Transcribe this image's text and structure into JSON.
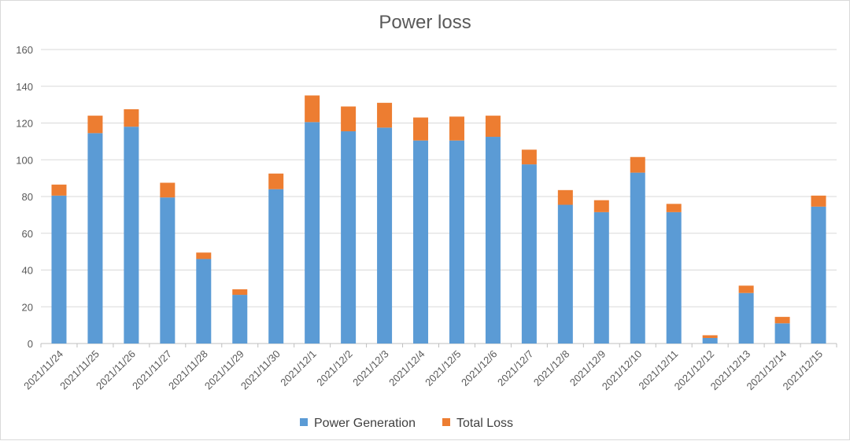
{
  "chart_data": {
    "type": "bar",
    "stacked": true,
    "title": "Power loss",
    "xlabel": "",
    "ylabel": "",
    "ylim": [
      0,
      160
    ],
    "yticks": [
      0,
      20,
      40,
      60,
      80,
      100,
      120,
      140,
      160
    ],
    "grid": true,
    "legend_position": "bottom",
    "categories": [
      "2021/11/24",
      "2021/11/25",
      "2021/11/26",
      "2021/11/27",
      "2021/11/28",
      "2021/11/29",
      "2021/11/30",
      "2021/12/1",
      "2021/12/2",
      "2021/12/3",
      "2021/12/4",
      "2021/12/5",
      "2021/12/6",
      "2021/12/7",
      "2021/12/8",
      "2021/12/9",
      "2021/12/10",
      "2021/12/11",
      "2021/12/12",
      "2021/12/13",
      "2021/12/14",
      "2021/12/15"
    ],
    "series": [
      {
        "name": "Power Generation",
        "color": "#5b9bd5",
        "values": [
          80.5,
          114.5,
          118,
          79.5,
          46,
          26.5,
          84,
          120.5,
          115.5,
          117.5,
          110.5,
          110.5,
          112.5,
          97.5,
          75.5,
          71.5,
          93,
          71.5,
          3,
          27.5,
          11,
          74.5
        ]
      },
      {
        "name": "Total Loss",
        "color": "#ed7d31",
        "values": [
          6,
          9.5,
          9.5,
          8,
          3.5,
          3,
          8.5,
          14.5,
          13.5,
          13.5,
          12.5,
          13,
          11.5,
          8,
          8,
          6.5,
          8.5,
          4.5,
          1.5,
          4,
          3.5,
          6
        ]
      }
    ]
  }
}
